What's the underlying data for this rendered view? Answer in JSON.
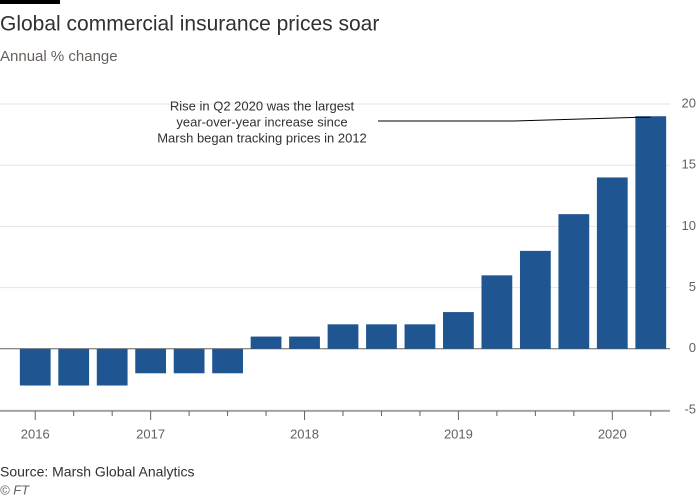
{
  "chart_data": {
    "type": "bar",
    "title": "Global commercial insurance prices soar",
    "subtitle": "Annual % change",
    "annotation": [
      "Rise in Q2 2020 was the largest",
      "year-over-year increase since",
      "Marsh began tracking prices in 2012"
    ],
    "source": "Source: Marsh Global Analytics",
    "credit": "© FT",
    "categories": [
      "2016",
      null,
      null,
      "2017",
      null,
      null,
      null,
      "2018",
      null,
      null,
      null,
      "2019",
      null,
      null,
      null,
      "2020",
      null
    ],
    "values": [
      -3,
      -3,
      -3,
      -2,
      -2,
      -2,
      1,
      1,
      2,
      2,
      2,
      3,
      6,
      8,
      11,
      14,
      19
    ],
    "color": "#1f5591",
    "ylim": [
      -5,
      20
    ],
    "yticks": [
      -5,
      0,
      5,
      10,
      15,
      20
    ],
    "grid": true
  }
}
